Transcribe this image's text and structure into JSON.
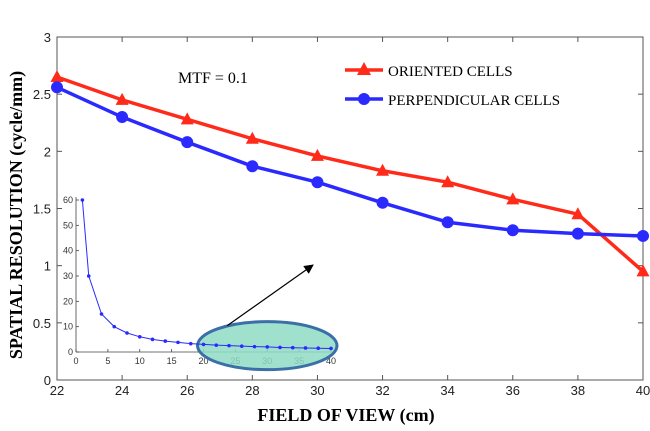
{
  "chart_data": {
    "type": "line",
    "xlabel": "FIELD OF VIEW (cm)",
    "ylabel": "SPATIAL RESOLUTION (cycle/mm)",
    "xlim": [
      22,
      40
    ],
    "ylim": [
      0,
      3
    ],
    "xticks": [
      "22",
      "24",
      "26",
      "28",
      "30",
      "32",
      "34",
      "36",
      "38",
      "40"
    ],
    "yticks": [
      "0",
      "0.5",
      "1",
      "1.5",
      "2",
      "2.5",
      "3"
    ],
    "annotation": "MTF = 0.1",
    "legend_position": "top-right",
    "series": [
      {
        "name": "ORIENTED CELLS",
        "color": "#ff2a1a",
        "marker": "triangle",
        "x": [
          22,
          24,
          26,
          28,
          30,
          32,
          34,
          36,
          38,
          40
        ],
        "values": [
          2.65,
          2.45,
          2.28,
          2.11,
          1.96,
          1.83,
          1.73,
          1.58,
          1.45,
          0.95
        ]
      },
      {
        "name": "PERPENDICULAR CELLS",
        "color": "#2a2aff",
        "marker": "circle",
        "x": [
          22,
          24,
          26,
          28,
          30,
          32,
          34,
          36,
          38,
          40
        ],
        "values": [
          2.56,
          2.3,
          2.08,
          1.87,
          1.73,
          1.55,
          1.38,
          1.31,
          1.28,
          1.26
        ]
      }
    ],
    "inset": {
      "type": "line",
      "color": "#2a2aff",
      "xlim": [
        0,
        40
      ],
      "ylim": [
        0,
        60
      ],
      "xticks": [
        "0",
        "5",
        "10",
        "15",
        "20",
        "25",
        "30",
        "35",
        "40"
      ],
      "yticks": [
        "0",
        "10",
        "20",
        "30",
        "40",
        "50",
        "60"
      ],
      "x": [
        1,
        2,
        4,
        6,
        8,
        10,
        12,
        14,
        16,
        18,
        20,
        22,
        24,
        26,
        28,
        30,
        32,
        34,
        36,
        38,
        40
      ],
      "values": [
        60,
        30,
        15,
        10,
        7.5,
        6,
        5,
        4.3,
        3.8,
        3.3,
        3,
        2.7,
        2.5,
        2.3,
        2.1,
        2,
        1.8,
        1.7,
        1.6,
        1.5,
        1.4
      ],
      "highlight_x_range": [
        20,
        40
      ]
    }
  }
}
